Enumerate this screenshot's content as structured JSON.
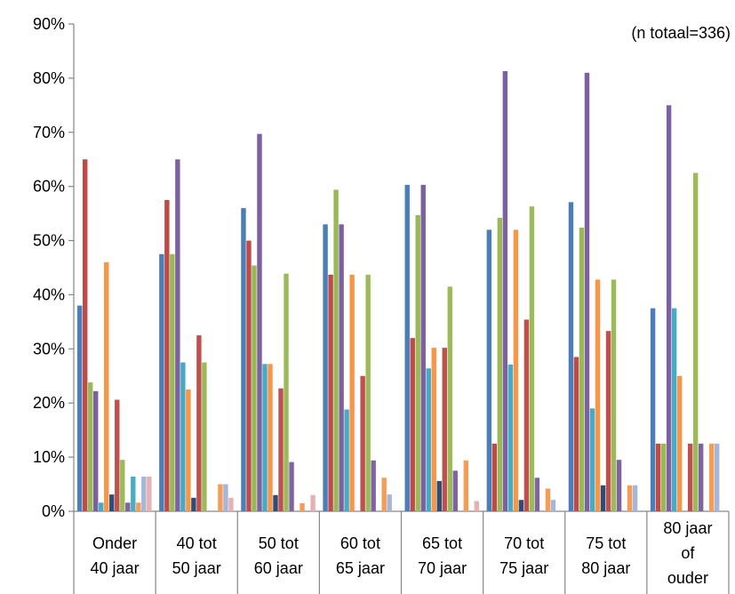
{
  "chart_data": {
    "type": "bar",
    "note": "(n totaal=336)",
    "ylim": [
      0,
      90
    ],
    "y_tick_labels": [
      "0%",
      "10%",
      "20%",
      "30%",
      "40%",
      "50%",
      "60%",
      "70%",
      "80%",
      "90%"
    ],
    "categories": [
      [
        "Onder",
        "40 jaar"
      ],
      [
        "40 tot",
        "50 jaar"
      ],
      [
        "50 tot",
        "60 jaar"
      ],
      [
        "60 tot",
        "65 jaar"
      ],
      [
        "65 tot",
        "70 jaar"
      ],
      [
        "70 tot",
        "75 jaar"
      ],
      [
        "75 tot",
        "80 jaar"
      ],
      [
        "80 jaar",
        "of",
        "ouder"
      ]
    ],
    "colors": [
      "#4a7ebb",
      "#be4b48",
      "#98b954",
      "#7d60a0",
      "#46aac5",
      "#f79646",
      "#2c4d75",
      "#c0504d",
      "#9bbb59",
      "#8064a2",
      "#4bacc6",
      "#f59d56",
      "#a5b6d8",
      "#e8b0b0"
    ],
    "series": [
      {
        "values": [
          38.0,
          47.5,
          56.0,
          53.0,
          60.3,
          52.0,
          57.1,
          37.5
        ]
      },
      {
        "values": [
          65.0,
          57.5,
          50.0,
          43.7,
          32.0,
          12.5,
          28.5,
          12.5
        ]
      },
      {
        "values": [
          23.8,
          47.5,
          45.4,
          59.4,
          54.7,
          54.2,
          52.4,
          12.5
        ]
      },
      {
        "values": [
          22.2,
          65.0,
          69.7,
          53.0,
          60.3,
          81.3,
          81.0,
          75.0
        ]
      },
      {
        "values": [
          1.6,
          27.5,
          27.2,
          18.8,
          26.4,
          27.1,
          19.0,
          37.5
        ]
      },
      {
        "values": [
          46.0,
          22.5,
          27.2,
          43.7,
          30.2,
          52.0,
          42.8,
          25.0
        ]
      },
      {
        "values": [
          3.1,
          2.5,
          3.0,
          0,
          5.6,
          2.1,
          4.8,
          0
        ]
      },
      {
        "values": [
          20.6,
          32.5,
          22.7,
          25.0,
          30.2,
          35.4,
          33.3,
          12.5
        ]
      },
      {
        "values": [
          9.5,
          27.5,
          43.9,
          43.7,
          41.5,
          56.3,
          42.8,
          62.5
        ]
      },
      {
        "values": [
          1.6,
          0,
          9.1,
          9.4,
          7.5,
          6.2,
          9.5,
          12.5
        ]
      },
      {
        "values": [
          6.4,
          0,
          0,
          0,
          0,
          0,
          0,
          0
        ]
      },
      {
        "values": [
          1.6,
          5.0,
          1.5,
          6.2,
          9.4,
          4.2,
          4.8,
          12.5
        ]
      },
      {
        "values": [
          6.4,
          5.0,
          0,
          3.1,
          0,
          2.1,
          4.8,
          12.5
        ]
      },
      {
        "values": [
          6.4,
          2.5,
          3.0,
          0,
          1.9,
          0,
          0,
          0
        ]
      }
    ]
  }
}
